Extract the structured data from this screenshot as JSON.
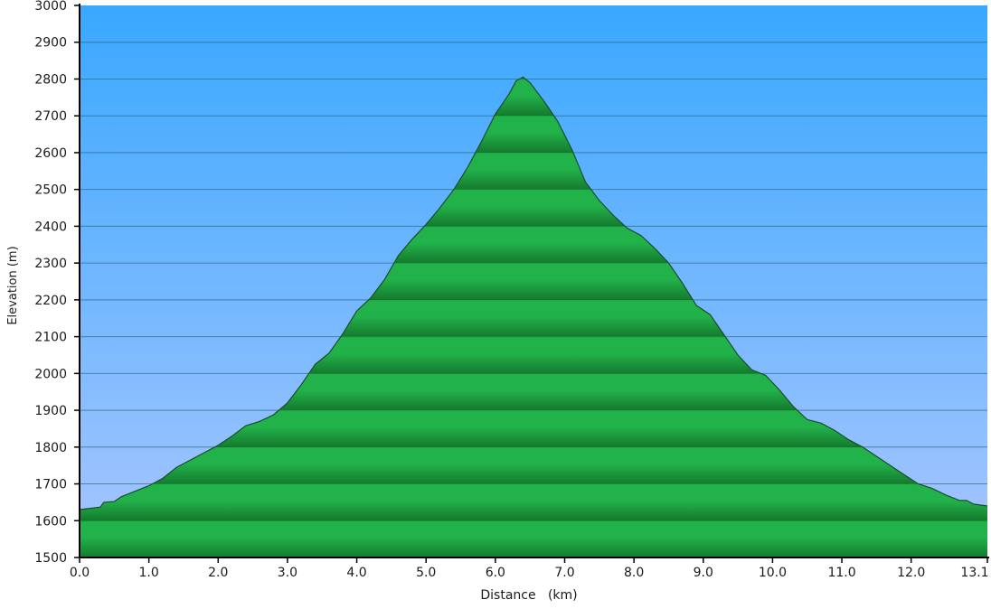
{
  "chart_data": {
    "type": "area",
    "title": "",
    "xlabel": "Distance   (km)",
    "ylabel": "Elevation (m)",
    "xlim": [
      0,
      13.1
    ],
    "ylim": [
      1500,
      3000
    ],
    "grid": true,
    "x_ticks": [
      "0.0",
      "1.0",
      "2.0",
      "3.0",
      "4.0",
      "5.0",
      "6.0",
      "7.0",
      "8.0",
      "9.0",
      "10.0",
      "11.0",
      "12.0",
      "13.1"
    ],
    "x_tick_values": [
      0,
      1,
      2,
      3,
      4,
      5,
      6,
      7,
      8,
      9,
      10,
      11,
      12,
      13.1
    ],
    "y_ticks": [
      "1500",
      "1600",
      "1700",
      "1800",
      "1900",
      "2000",
      "2100",
      "2200",
      "2300",
      "2400",
      "2500",
      "2600",
      "2700",
      "2800",
      "2900",
      "3000"
    ],
    "y_tick_values": [
      1500,
      1600,
      1700,
      1800,
      1900,
      2000,
      2100,
      2200,
      2300,
      2400,
      2500,
      2600,
      2700,
      2800,
      2900,
      3000
    ],
    "series": [
      {
        "x": [
          0,
          0.3,
          0.35,
          0.5,
          0.6,
          0.8,
          1.0,
          1.2,
          1.4,
          1.6,
          1.8,
          2.0,
          2.2,
          2.4,
          2.6,
          2.8,
          3.0,
          3.2,
          3.4,
          3.6,
          3.8,
          4.0,
          4.2,
          4.4,
          4.6,
          4.8,
          5.0,
          5.2,
          5.4,
          5.6,
          5.8,
          6.0,
          6.2,
          6.3,
          6.4,
          6.5,
          6.7,
          6.9,
          7.1,
          7.3,
          7.5,
          7.7,
          7.9,
          8.1,
          8.3,
          8.5,
          8.7,
          8.9,
          9.1,
          9.3,
          9.5,
          9.7,
          9.9,
          10.1,
          10.3,
          10.5,
          10.7,
          10.9,
          11.1,
          11.3,
          11.5,
          11.7,
          11.9,
          12.1,
          12.3,
          12.5,
          12.7,
          12.8,
          12.9,
          13.1
        ],
        "y": [
          1630,
          1637,
          1650,
          1652,
          1665,
          1680,
          1695,
          1715,
          1745,
          1765,
          1785,
          1805,
          1830,
          1858,
          1870,
          1888,
          1920,
          1970,
          2025,
          2055,
          2108,
          2170,
          2205,
          2255,
          2320,
          2365,
          2405,
          2450,
          2500,
          2560,
          2630,
          2705,
          2760,
          2795,
          2805,
          2790,
          2740,
          2685,
          2610,
          2520,
          2470,
          2430,
          2395,
          2375,
          2340,
          2300,
          2245,
          2185,
          2160,
          2105,
          2050,
          2010,
          1995,
          1955,
          1910,
          1875,
          1865,
          1845,
          1820,
          1800,
          1775,
          1750,
          1725,
          1700,
          1688,
          1670,
          1655,
          1655,
          1645,
          1640
        ]
      }
    ],
    "colors": {
      "sky_top": "#39a8ff",
      "sky_bottom": "#a8c6ff",
      "fill_light": "#22b24a",
      "fill_dark": "#147a2e",
      "outline": "#1e4a2e",
      "grid": "#3d6fa8",
      "axis": "#000000"
    }
  }
}
